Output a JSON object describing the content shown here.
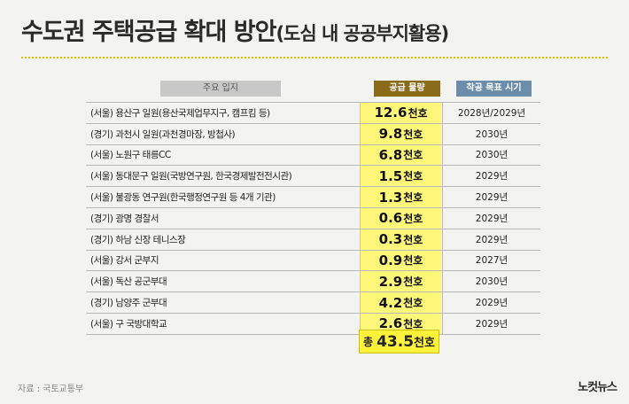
{
  "title": {
    "main": "수도권 주택공급 확대 방안",
    "sub": "(도심 내 공공부지활용)"
  },
  "headers": {
    "location": "주요 입지",
    "volume": "공급 물량",
    "start": "착공 목표 시기"
  },
  "rows": [
    {
      "location": "(서울) 용산구 일원(용산국제업무지구, 캠프킴 등)",
      "volume": "12.6",
      "unit": "천호",
      "start": "2028년/2029년"
    },
    {
      "location": "(경기) 과천시 일원(과천경마장, 방첩사)",
      "volume": "9.8",
      "unit": "천호",
      "start": "2030년"
    },
    {
      "location": "(서울) 노원구 태릉CC",
      "volume": "6.8",
      "unit": "천호",
      "start": "2030년"
    },
    {
      "location": "(서울) 동대문구 일원(국방연구원, 한국경제발전전시관)",
      "volume": "1.5",
      "unit": "천호",
      "start": "2029년"
    },
    {
      "location": "(서울) 불광동 연구원(한국행정연구원 등 4개 기관)",
      "volume": "1.3",
      "unit": "천호",
      "start": "2029년"
    },
    {
      "location": "(경기) 광명 경찰서",
      "volume": "0.6",
      "unit": "천호",
      "start": "2029년"
    },
    {
      "location": "(경기) 하남 신장 테니스장",
      "volume": "0.3",
      "unit": "천호",
      "start": "2029년"
    },
    {
      "location": "(서울) 강서 군부지",
      "volume": "0.9",
      "unit": "천호",
      "start": "2027년"
    },
    {
      "location": "(서울) 독산 공군부대",
      "volume": "2.9",
      "unit": "천호",
      "start": "2030년"
    },
    {
      "location": "(경기) 남양주 군부대",
      "volume": "4.2",
      "unit": "천호",
      "start": "2029년"
    },
    {
      "location": "(서울) 구 국방대학교",
      "volume": "2.6",
      "unit": "천호",
      "start": "2029년"
    }
  ],
  "total": {
    "label": "총",
    "value": "43.5",
    "unit": "천호"
  },
  "source": "자료 : 국토교통부",
  "logo": "노컷뉴스",
  "colors": {
    "highlight": "#fff77a",
    "total_bg": "#fff23a",
    "volume_header": "#8a6b1a",
    "start_header": "#6d8eaa"
  }
}
